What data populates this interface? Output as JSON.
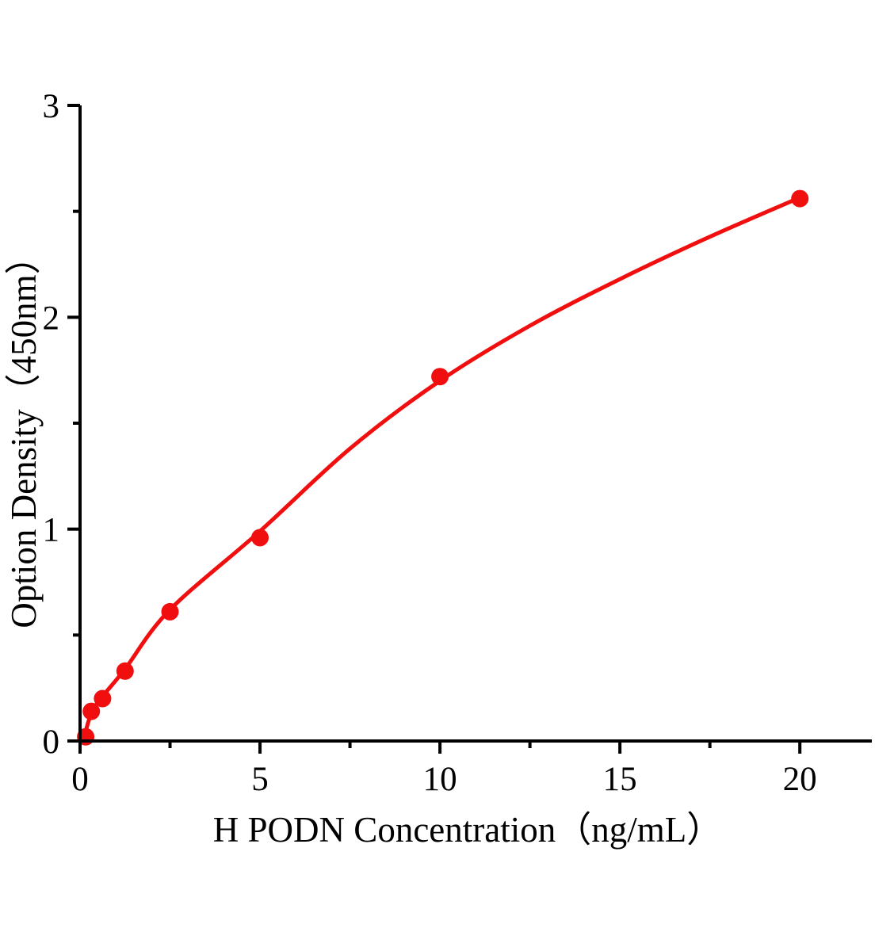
{
  "chart_data": {
    "type": "scatter",
    "title": "",
    "xlabel": "H PODN Concentration（ng/mL）",
    "ylabel": "Option Density（450nm）",
    "xlim": [
      0,
      22
    ],
    "ylim": [
      0,
      3
    ],
    "grid": false,
    "legend": "none",
    "x_major_ticks": [
      0,
      5,
      10,
      15,
      20
    ],
    "x_minor_ticks": [
      2.5,
      7.5,
      12.5,
      17.5
    ],
    "y_major_ticks": [
      0,
      1,
      2,
      3
    ],
    "y_minor_ticks": [
      0.5,
      1.5,
      2.5
    ],
    "accent_color": "#f10e0e",
    "axis_color": "#000000",
    "series": [
      {
        "name": "standard-points",
        "type": "scatter",
        "marker": "circle",
        "color": "#f10e0e",
        "points": [
          {
            "x": 0.156,
            "y": 0.02
          },
          {
            "x": 0.313,
            "y": 0.14
          },
          {
            "x": 0.625,
            "y": 0.2
          },
          {
            "x": 1.25,
            "y": 0.33
          },
          {
            "x": 2.5,
            "y": 0.61
          },
          {
            "x": 5,
            "y": 0.96
          },
          {
            "x": 10,
            "y": 1.72
          },
          {
            "x": 20,
            "y": 2.56
          }
        ]
      },
      {
        "name": "fitted-curve",
        "type": "line",
        "color": "#f10e0e",
        "points": [
          {
            "x": 0.1,
            "y": 0.01
          },
          {
            "x": 0.313,
            "y": 0.13
          },
          {
            "x": 0.625,
            "y": 0.21
          },
          {
            "x": 1.25,
            "y": 0.34
          },
          {
            "x": 2.5,
            "y": 0.62
          },
          {
            "x": 5,
            "y": 0.99
          },
          {
            "x": 7.5,
            "y": 1.38
          },
          {
            "x": 10,
            "y": 1.7
          },
          {
            "x": 12.5,
            "y": 1.96
          },
          {
            "x": 15,
            "y": 2.18
          },
          {
            "x": 17.5,
            "y": 2.38
          },
          {
            "x": 20,
            "y": 2.565
          }
        ]
      }
    ]
  }
}
